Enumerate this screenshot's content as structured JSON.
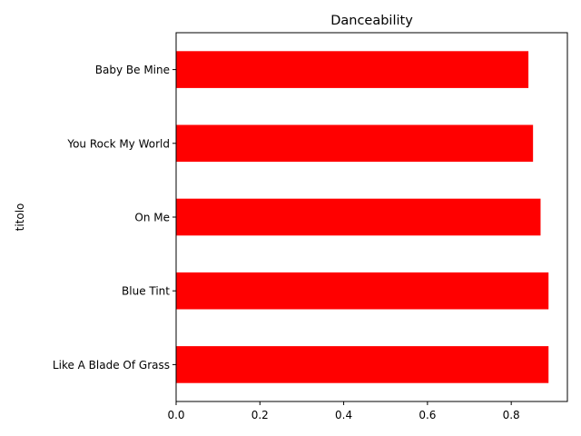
{
  "chart_data": {
    "type": "bar",
    "orientation": "horizontal",
    "title": "Danceability",
    "xlabel": "",
    "ylabel": "titolo",
    "categories": [
      "Like A Blade Of Grass",
      "Blue Tint",
      "On Me",
      "You Rock My World",
      "Baby Be Mine"
    ],
    "values": [
      0.889,
      0.889,
      0.87,
      0.852,
      0.841
    ],
    "xlim": [
      0,
      0.934
    ],
    "xticks": [
      "0.0",
      "0.2",
      "0.4",
      "0.6",
      "0.8"
    ],
    "grid": false,
    "legend": "none",
    "bar_color": "#ff0000"
  }
}
